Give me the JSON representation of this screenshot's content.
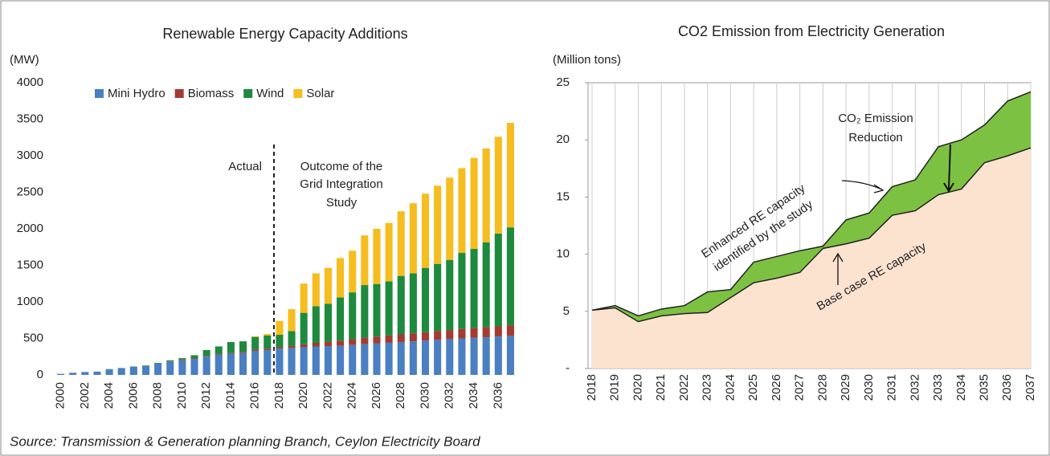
{
  "chart_data": [
    {
      "type": "bar",
      "stacked": true,
      "title": "Renewable Energy Capacity Additions",
      "y_label": "(MW)",
      "categories": [
        "2000",
        null,
        "2002",
        null,
        "2004",
        null,
        "2006",
        null,
        "2008",
        null,
        "2010",
        null,
        "2012",
        null,
        "2014",
        null,
        "2016",
        null,
        "2018",
        null,
        "2020",
        null,
        "2022",
        null,
        "2024",
        null,
        "2026",
        null,
        "2028",
        null,
        "2030",
        null,
        "2032",
        null,
        "2034",
        null,
        "2036",
        null
      ],
      "series": [
        {
          "name": "Mini Hydro",
          "color": "#4a7fc1",
          "values": [
            15,
            30,
            40,
            45,
            75,
            90,
            110,
            125,
            155,
            180,
            200,
            220,
            250,
            280,
            290,
            300,
            330,
            340,
            360,
            370,
            380,
            390,
            395,
            400,
            410,
            420,
            430,
            440,
            450,
            460,
            470,
            480,
            490,
            500,
            510,
            515,
            525,
            535
          ]
        },
        {
          "name": "Biomass",
          "color": "#a23b32",
          "values": [
            0,
            0,
            0,
            0,
            0,
            0,
            0,
            0,
            0,
            5,
            10,
            10,
            10,
            10,
            10,
            15,
            20,
            20,
            20,
            30,
            40,
            50,
            60,
            70,
            80,
            90,
            95,
            100,
            105,
            110,
            115,
            120,
            125,
            130,
            135,
            140,
            140,
            145
          ]
        },
        {
          "name": "Wind",
          "color": "#1e8a3e",
          "values": [
            0,
            0,
            0,
            0,
            5,
            5,
            5,
            5,
            10,
            15,
            20,
            40,
            80,
            100,
            150,
            145,
            170,
            180,
            170,
            200,
            430,
            500,
            520,
            590,
            640,
            720,
            720,
            740,
            800,
            820,
            880,
            920,
            960,
            1040,
            1080,
            1160,
            1270,
            1340
          ]
        },
        {
          "name": "Solar",
          "color": "#f5bd1f",
          "values": [
            0,
            0,
            0,
            0,
            0,
            0,
            0,
            0,
            0,
            0,
            0,
            0,
            0,
            0,
            0,
            0,
            10,
            20,
            190,
            300,
            400,
            450,
            490,
            540,
            570,
            680,
            755,
            800,
            885,
            960,
            1015,
            1070,
            1125,
            1160,
            1245,
            1285,
            1325,
            1430
          ]
        }
      ],
      "ylim": [
        0,
        4000
      ],
      "yticks": [
        0,
        500,
        1000,
        1500,
        2000,
        2500,
        3000,
        3500,
        4000
      ],
      "annotations": [
        "Actual",
        "Outcome of the",
        "Grid Integration",
        "Study"
      ]
    },
    {
      "type": "area",
      "title": "CO2 Emission from Electricity Generation",
      "y_label": "(Million tons)",
      "categories": [
        "2018",
        "2019",
        "2020",
        "2021",
        "2022",
        "2023",
        "2024",
        "2025",
        "2026",
        "2027",
        "2028",
        "2029",
        "2030",
        "2031",
        "2032",
        "2033",
        "2034",
        "2035",
        "2036",
        "2037"
      ],
      "series": [
        {
          "color": "#fbe3d0",
          "values": [
            5.1,
            5.3,
            4.1,
            4.6,
            4.8,
            4.9,
            6.2,
            7.5,
            7.9,
            8.4,
            10.5,
            10.9,
            11.4,
            13.4,
            13.8,
            15.2,
            15.7,
            18.0,
            18.6,
            19.3
          ]
        },
        {
          "color": "#7dc142",
          "values": [
            5.1,
            5.5,
            4.6,
            5.2,
            5.5,
            6.7,
            6.9,
            9.3,
            9.8,
            10.3,
            10.7,
            13.0,
            13.6,
            15.9,
            16.5,
            19.4,
            20.0,
            21.3,
            23.4,
            24.2
          ]
        }
      ],
      "ylim": [
        0,
        25
      ],
      "yticks": [
        {
          "value": 0,
          "label": "-"
        },
        5,
        10,
        15,
        20,
        25
      ],
      "annotations": [
        "CO₂ Emission",
        "Reduction",
        "Enhanced RE capacity",
        "identified by the study",
        "Base case RE capacity"
      ]
    }
  ],
  "source": "Source: Transmission & Generation planning Branch, Ceylon Electricity Board"
}
